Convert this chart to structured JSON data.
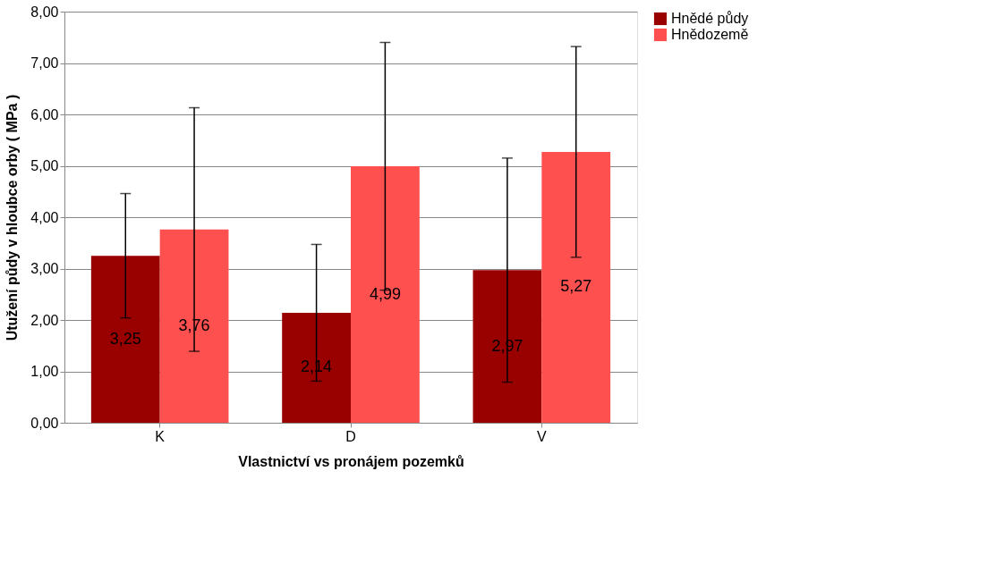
{
  "chart_data": {
    "type": "bar",
    "xlabel": "Vlastnictví vs pronájem pozemků",
    "ylabel": "Utužení půdy v hloubce orby ( MPa )",
    "categories": [
      "K",
      "D",
      "V"
    ],
    "series": [
      {
        "name": "Hnědé půdy",
        "color": "#990000",
        "values": [
          3.25,
          2.14,
          2.97
        ],
        "errors": [
          1.21,
          1.33,
          2.18
        ],
        "value_labels": [
          "3,25",
          "2,14",
          "2,97"
        ]
      },
      {
        "name": "Hnědozemě",
        "color": "#ff5050",
        "values": [
          3.76,
          4.99,
          5.27
        ],
        "errors": [
          2.37,
          2.41,
          2.05
        ],
        "value_labels": [
          "3,76",
          "4,99",
          "5,27"
        ]
      }
    ],
    "ylim": [
      0,
      8
    ],
    "yticks": [
      {
        "value": 0,
        "label": "0,00"
      },
      {
        "value": 1,
        "label": "1,00"
      },
      {
        "value": 2,
        "label": "2,00"
      },
      {
        "value": 3,
        "label": "3,00"
      },
      {
        "value": 4,
        "label": "4,00"
      },
      {
        "value": 5,
        "label": "5,00"
      },
      {
        "value": 6,
        "label": "6,00"
      },
      {
        "value": 7,
        "label": "7,00"
      },
      {
        "value": 8,
        "label": "8,00"
      }
    ],
    "grid": "y",
    "legend": "right"
  }
}
